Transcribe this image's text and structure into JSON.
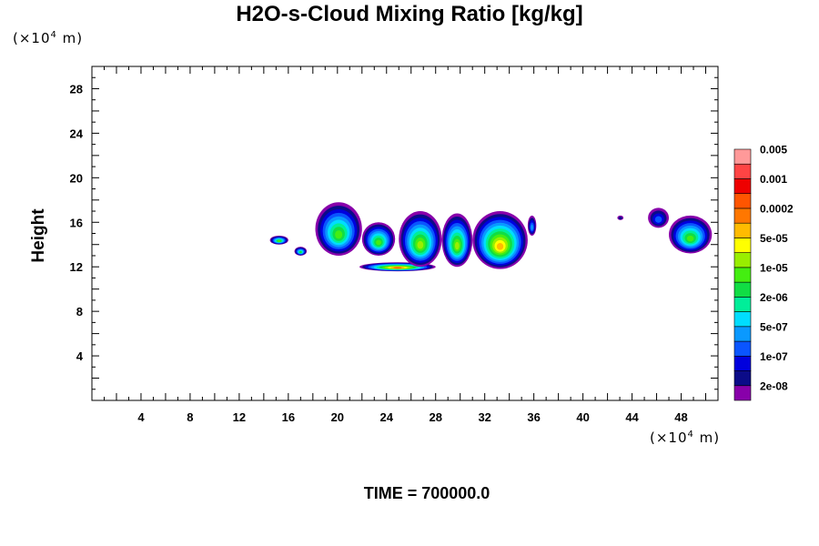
{
  "chart_data": {
    "type": "heatmap",
    "title": "H2O-s-Cloud Mixing Ratio [kg/kg]",
    "ylabel": "Height",
    "xlabel": "",
    "x_unit": "(×10",
    "x_unit_exp": "4",
    "x_unit_suffix": " m)",
    "y_unit": "(×10",
    "y_unit_exp": "4",
    "y_unit_suffix": " m)",
    "xlim": [
      0,
      51
    ],
    "ylim": [
      0,
      30
    ],
    "x_ticks": [
      4,
      8,
      12,
      16,
      20,
      24,
      28,
      32,
      36,
      40,
      44,
      48
    ],
    "y_ticks": [
      4,
      8,
      12,
      16,
      20,
      24,
      28
    ],
    "footer": "TIME = 700000.0",
    "colorbar": {
      "colors": [
        "#8800aa",
        "#0b0b88",
        "#0000dd",
        "#0a55ff",
        "#0a99ff",
        "#00ddff",
        "#00ee99",
        "#11dd44",
        "#44ee11",
        "#99ee00",
        "#ffff00",
        "#ffbb00",
        "#ff7700",
        "#ff5500",
        "#ee0000",
        "#ff4444",
        "#ff9999"
      ],
      "labels": [
        "2e-08",
        "1e-07",
        "5e-07",
        "2e-06",
        "1e-05",
        "5e-05",
        "0.0002",
        "0.001",
        "0.005"
      ]
    },
    "cloud_regions": [
      {
        "x": [
          14.5,
          16.0
        ],
        "y": [
          14.0,
          14.8
        ],
        "max_level": 8
      },
      {
        "x": [
          16.5,
          17.5
        ],
        "y": [
          13.0,
          13.8
        ],
        "max_level": 7
      },
      {
        "x": [
          18.2,
          22.0
        ],
        "y": [
          13.0,
          17.8
        ],
        "max_level": 8
      },
      {
        "x": [
          22.0,
          24.7
        ],
        "y": [
          13.0,
          16.0
        ],
        "max_level": 8
      },
      {
        "x": [
          21.8,
          28.0
        ],
        "y": [
          11.6,
          12.4
        ],
        "max_level": 12
      },
      {
        "x": [
          25.0,
          28.5
        ],
        "y": [
          12.0,
          17.0
        ],
        "max_level": 9
      },
      {
        "x": [
          28.5,
          31.0
        ],
        "y": [
          12.0,
          16.8
        ],
        "max_level": 9
      },
      {
        "x": [
          31.0,
          35.5
        ],
        "y": [
          11.8,
          17.0
        ],
        "max_level": 11
      },
      {
        "x": [
          35.5,
          36.2
        ],
        "y": [
          14.8,
          16.6
        ],
        "max_level": 4
      },
      {
        "x": [
          42.8,
          43.3
        ],
        "y": [
          16.2,
          16.6
        ],
        "max_level": 1
      },
      {
        "x": [
          45.3,
          47.0
        ],
        "y": [
          15.5,
          17.3
        ],
        "max_level": 3
      },
      {
        "x": [
          47.0,
          50.5
        ],
        "y": [
          13.2,
          16.6
        ],
        "max_level": 8
      }
    ]
  }
}
